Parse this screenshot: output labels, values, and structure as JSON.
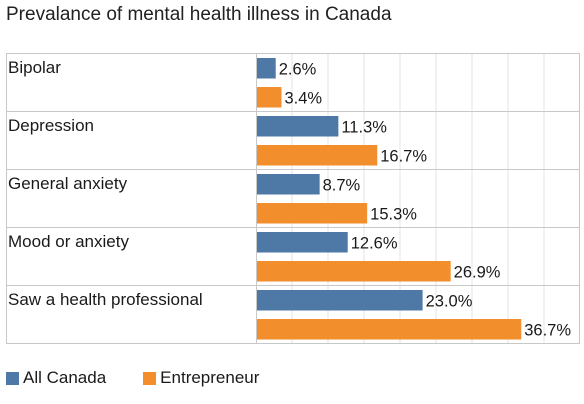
{
  "chart_data": {
    "type": "bar",
    "orientation": "horizontal",
    "title": "Prevalance of mental health illness in Canada",
    "categories": [
      "Bipolar",
      "Depression",
      "General anxiety",
      "Mood or anxiety",
      "Saw a health professional"
    ],
    "series": [
      {
        "name": "All Canada",
        "values": [
          2.6,
          11.3,
          8.7,
          12.6,
          23.0
        ],
        "color": "#4e79a7"
      },
      {
        "name": "Entrepreneur",
        "values": [
          3.4,
          16.7,
          15.3,
          26.9,
          36.7
        ],
        "color": "#f28e2b"
      }
    ],
    "value_suffix": "%",
    "xlim": [
      0,
      45
    ],
    "grid": true,
    "legend": "bottom-left"
  }
}
